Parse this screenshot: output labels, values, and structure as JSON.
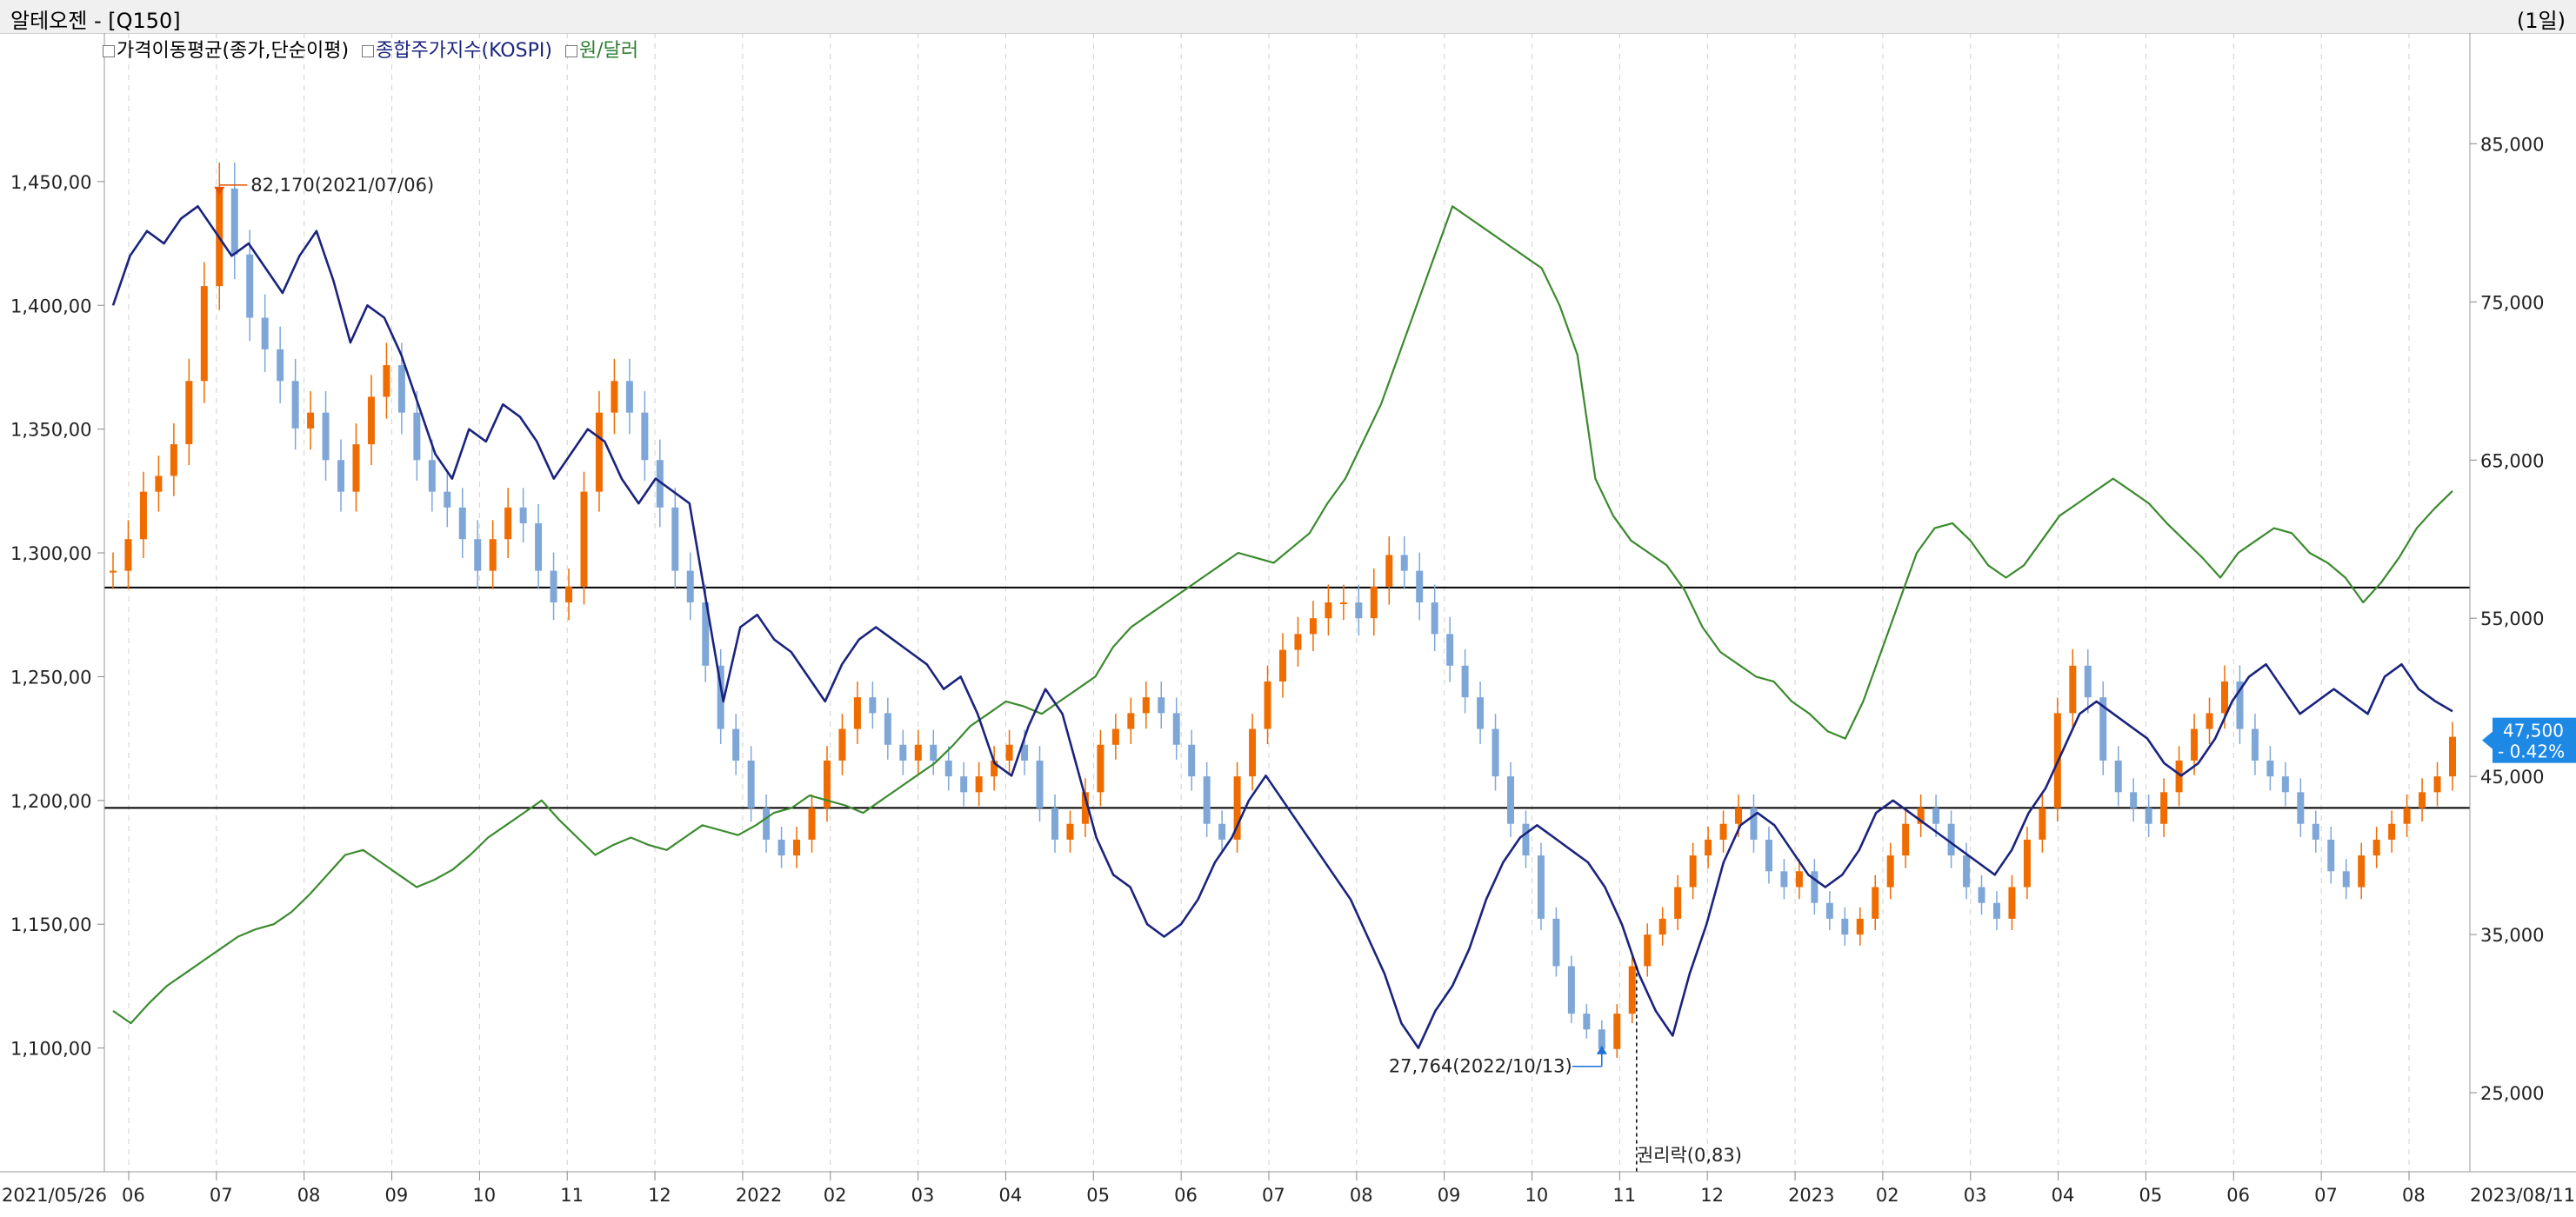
{
  "window": {
    "title": "알테오젠 - [Q150]",
    "period": "(1일)"
  },
  "legend": [
    {
      "label": "가격이동평균(종가,단순이평)",
      "color": "#000000"
    },
    {
      "label": "종합주가지수(KOSPI)",
      "color": "#1a237e"
    },
    {
      "label": "원/달러",
      "color": "#2e7d32"
    }
  ],
  "colors": {
    "up": "#ef6c00",
    "down": "#7ea7d8",
    "kospi": "#1a237e",
    "usd": "#3b8a2e",
    "annotation_high": "#e65100",
    "annotation_low": "#1e6fd9",
    "badge": "#1e88e5"
  },
  "chart_data": {
    "type": "line",
    "title": "알테오젠 - [Q150]",
    "x_range": [
      "2021/05/26",
      "2023/08/11"
    ],
    "x_ticks": [
      "06",
      "07",
      "08",
      "09",
      "10",
      "11",
      "12",
      "2022",
      "02",
      "03",
      "04",
      "05",
      "06",
      "07",
      "08",
      "09",
      "10",
      "11",
      "12",
      "2023",
      "02",
      "03",
      "04",
      "05",
      "06",
      "07",
      "08"
    ],
    "x_start_label": "2021/05/26",
    "x_end_label": "2023/08/11",
    "left_axis": {
      "ticks": [
        "1,450,00",
        "1,400,00",
        "1,350,00",
        "1,300,00",
        "1,250,00",
        "1,200,00",
        "1,150,00",
        "1,100,00"
      ],
      "range": [
        1050,
        1510
      ]
    },
    "right_axis": {
      "ticks": [
        "85,000",
        "75,000",
        "65,000",
        "55,000",
        "45,000",
        "35,000",
        "25,000"
      ],
      "range": [
        20000,
        92000
      ]
    },
    "horizontal_lines_left_axis": [
      1286,
      1197
    ],
    "series": [
      {
        "name": "알테오젠 (candles)",
        "axis": "right",
        "values": [
          58000,
          60000,
          63000,
          64000,
          66000,
          70000,
          76000,
          82170,
          78000,
          74000,
          72000,
          70000,
          67000,
          68000,
          65000,
          63000,
          66000,
          69000,
          71000,
          68000,
          65000,
          63000,
          62000,
          60000,
          58000,
          60000,
          62000,
          61000,
          58000,
          56000,
          57000,
          63000,
          68000,
          70000,
          68000,
          65000,
          62000,
          58000,
          56000,
          52000,
          48000,
          46000,
          43000,
          41000,
          40000,
          41000,
          43000,
          46000,
          48000,
          50000,
          49000,
          47000,
          46000,
          47000,
          46000,
          45000,
          44000,
          45000,
          46000,
          47000,
          46000,
          43000,
          41000,
          42000,
          44000,
          47000,
          48000,
          49000,
          50000,
          49000,
          47000,
          45000,
          42000,
          41000,
          45000,
          48000,
          51000,
          53000,
          54000,
          55000,
          56000,
          56000,
          55000,
          57000,
          59000,
          58000,
          56000,
          54000,
          52000,
          50000,
          48000,
          45000,
          42000,
          40000,
          36000,
          33000,
          30000,
          29000,
          27764,
          30000,
          33000,
          35000,
          36000,
          38000,
          40000,
          41000,
          42000,
          43000,
          41000,
          39000,
          38000,
          39000,
          37000,
          36000,
          35000,
          36000,
          38000,
          40000,
          42000,
          43000,
          42000,
          40000,
          38000,
          37000,
          36000,
          38000,
          41000,
          43000,
          49000,
          52000,
          50000,
          46000,
          44000,
          43000,
          42000,
          44000,
          46000,
          48000,
          49000,
          51000,
          48000,
          46000,
          45000,
          44000,
          42000,
          41000,
          39000,
          38000,
          40000,
          41000,
          42000,
          43000,
          44000,
          45000,
          47500
        ]
      },
      {
        "name": "종합주가지수(KOSPI)",
        "axis": "left",
        "values": [
          1400,
          1420,
          1430,
          1425,
          1435,
          1440,
          1430,
          1420,
          1425,
          1415,
          1405,
          1420,
          1430,
          1410,
          1385,
          1400,
          1395,
          1380,
          1360,
          1340,
          1330,
          1350,
          1345,
          1360,
          1355,
          1345,
          1330,
          1340,
          1350,
          1345,
          1330,
          1320,
          1330,
          1325,
          1320,
          1280,
          1240,
          1270,
          1275,
          1265,
          1260,
          1250,
          1240,
          1255,
          1265,
          1270,
          1265,
          1260,
          1255,
          1245,
          1250,
          1235,
          1215,
          1210,
          1230,
          1245,
          1235,
          1210,
          1185,
          1170,
          1165,
          1150,
          1145,
          1150,
          1160,
          1175,
          1185,
          1200,
          1210,
          1200,
          1190,
          1180,
          1170,
          1160,
          1145,
          1130,
          1110,
          1100,
          1115,
          1125,
          1140,
          1160,
          1175,
          1185,
          1190,
          1185,
          1180,
          1175,
          1165,
          1150,
          1130,
          1115,
          1105,
          1130,
          1150,
          1175,
          1190,
          1195,
          1190,
          1180,
          1170,
          1165,
          1170,
          1180,
          1195,
          1200,
          1195,
          1190,
          1185,
          1180,
          1175,
          1170,
          1180,
          1195,
          1205,
          1220,
          1235,
          1240,
          1235,
          1230,
          1225,
          1215,
          1210,
          1215,
          1225,
          1240,
          1250,
          1255,
          1245,
          1235,
          1240,
          1245,
          1240,
          1235,
          1250,
          1255,
          1245,
          1240,
          1236
        ]
      },
      {
        "name": "원/달러",
        "axis": "left",
        "values": [
          1115,
          1110,
          1118,
          1125,
          1130,
          1135,
          1140,
          1145,
          1148,
          1150,
          1155,
          1162,
          1170,
          1178,
          1180,
          1175,
          1170,
          1165,
          1168,
          1172,
          1178,
          1185,
          1190,
          1195,
          1200,
          1192,
          1185,
          1178,
          1182,
          1185,
          1182,
          1180,
          1185,
          1190,
          1188,
          1186,
          1190,
          1195,
          1197,
          1202,
          1200,
          1198,
          1195,
          1200,
          1205,
          1210,
          1215,
          1222,
          1230,
          1235,
          1240,
          1238,
          1235,
          1240,
          1245,
          1250,
          1262,
          1270,
          1275,
          1280,
          1285,
          1290,
          1295,
          1300,
          1298,
          1296,
          1302,
          1308,
          1320,
          1330,
          1345,
          1360,
          1380,
          1400,
          1420,
          1440,
          1435,
          1430,
          1425,
          1420,
          1415,
          1400,
          1380,
          1330,
          1315,
          1305,
          1300,
          1295,
          1285,
          1270,
          1260,
          1255,
          1250,
          1248,
          1240,
          1235,
          1228,
          1225,
          1240,
          1260,
          1280,
          1300,
          1310,
          1312,
          1305,
          1295,
          1290,
          1295,
          1305,
          1315,
          1320,
          1325,
          1330,
          1325,
          1320,
          1312,
          1305,
          1298,
          1290,
          1300,
          1305,
          1310,
          1308,
          1300,
          1296,
          1290,
          1280,
          1288,
          1298,
          1310,
          1318,
          1325
        ]
      }
    ],
    "annotations": {
      "high": "82,170(2021/07/06)",
      "low": "27,764(2022/10/13)",
      "event": "권리락(0,83)"
    },
    "last_value": {
      "price": "47,500",
      "change": "- 0.42%"
    }
  }
}
